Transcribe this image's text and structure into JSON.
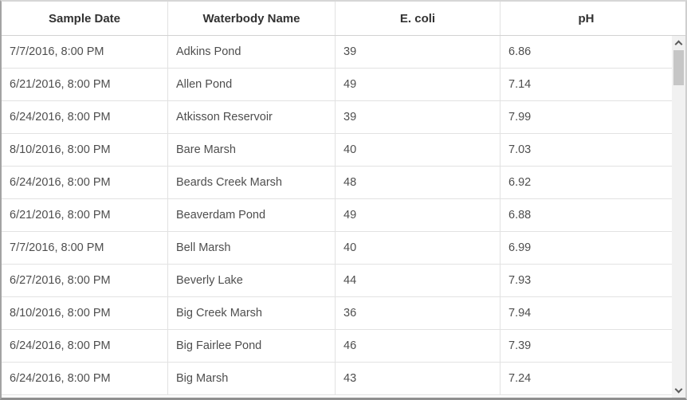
{
  "table": {
    "columns": [
      {
        "label": "Sample Date"
      },
      {
        "label": "Waterbody Name"
      },
      {
        "label": "E. coli"
      },
      {
        "label": "pH"
      }
    ],
    "rows": [
      {
        "sample_date": "7/7/2016, 8:00 PM",
        "waterbody_name": "Adkins Pond",
        "e_coli": "39",
        "ph": "6.86"
      },
      {
        "sample_date": "6/21/2016, 8:00 PM",
        "waterbody_name": "Allen Pond",
        "e_coli": "49",
        "ph": "7.14"
      },
      {
        "sample_date": "6/24/2016, 8:00 PM",
        "waterbody_name": "Atkisson Reservoir",
        "e_coli": "39",
        "ph": "7.99"
      },
      {
        "sample_date": "8/10/2016, 8:00 PM",
        "waterbody_name": "Bare Marsh",
        "e_coli": "40",
        "ph": "7.03"
      },
      {
        "sample_date": "6/24/2016, 8:00 PM",
        "waterbody_name": "Beards Creek Marsh",
        "e_coli": "48",
        "ph": "6.92"
      },
      {
        "sample_date": "6/21/2016, 8:00 PM",
        "waterbody_name": "Beaverdam Pond",
        "e_coli": "49",
        "ph": "6.88"
      },
      {
        "sample_date": "7/7/2016, 8:00 PM",
        "waterbody_name": "Bell Marsh",
        "e_coli": "40",
        "ph": "6.99"
      },
      {
        "sample_date": "6/27/2016, 8:00 PM",
        "waterbody_name": "Beverly Lake",
        "e_coli": "44",
        "ph": "7.93"
      },
      {
        "sample_date": "8/10/2016, 8:00 PM",
        "waterbody_name": "Big Creek Marsh",
        "e_coli": "36",
        "ph": "7.94"
      },
      {
        "sample_date": "6/24/2016, 8:00 PM",
        "waterbody_name": "Big Fairlee Pond",
        "e_coli": "46",
        "ph": "7.39"
      },
      {
        "sample_date": "6/24/2016, 8:00 PM",
        "waterbody_name": "Big Marsh",
        "e_coli": "43",
        "ph": "7.24"
      }
    ]
  },
  "scrollbar": {
    "up_icon": "chevron-up",
    "down_icon": "chevron-down",
    "orientation": "vertical"
  },
  "colors": {
    "header_text": "#323232",
    "cell_text": "#4e4e4e",
    "row_separator": "#e2e2e2",
    "header_separator": "#d2d2d2",
    "scrollbar_track": "#f1f1f1",
    "scrollbar_thumb": "#c6c6c6",
    "outer_border_dark": "#8f8f8f",
    "background": "#ffffff"
  }
}
